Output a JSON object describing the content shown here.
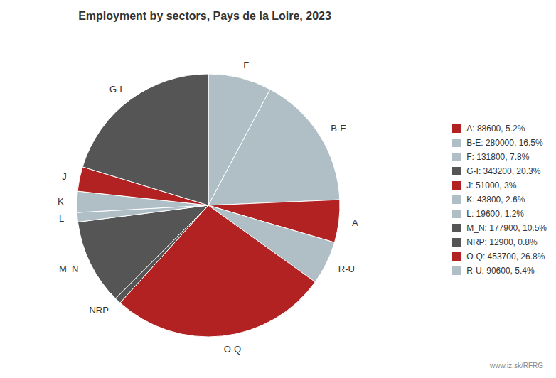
{
  "chart_data": {
    "type": "pie",
    "title": "Employment by sectors, Pays de la Loire, 2023",
    "categories": [
      "F",
      "B-E",
      "A",
      "R-U",
      "O-Q",
      "NRP",
      "M_N",
      "L",
      "K",
      "J",
      "G-I"
    ],
    "values": [
      131800,
      280000,
      88600,
      90600,
      453700,
      12900,
      177900,
      19600,
      43800,
      51000,
      343200
    ],
    "colors": [
      "#b0bec5",
      "#b0bec5",
      "#b22222",
      "#b0bec5",
      "#b22222",
      "#555555",
      "#555555",
      "#b0bec5",
      "#b0bec5",
      "#b22222",
      "#555555"
    ],
    "legend": "right",
    "legend_labels": [
      "A: 88600, 5.2%",
      "B-E: 280000, 16.5%",
      "F: 131800, 7.8%",
      "G-I: 343200, 20.3%",
      "J: 51000, 3%",
      "K: 43800, 2.6%",
      "L: 19600, 1.2%",
      "M_N: 177900, 10.5%",
      "NRP: 12900, 0.8%",
      "O-Q: 453700, 26.8%",
      "R-U: 90600, 5.4%"
    ],
    "legend_colors": [
      "#b22222",
      "#b0bec5",
      "#b0bec5",
      "#555555",
      "#b22222",
      "#b0bec5",
      "#b0bec5",
      "#555555",
      "#555555",
      "#b22222",
      "#b0bec5"
    ],
    "annotations": [
      "www.iz.sk/RFRG"
    ]
  }
}
